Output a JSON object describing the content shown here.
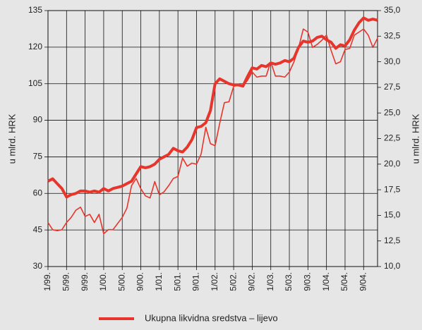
{
  "chart_data": {
    "type": "line",
    "y_label": "u mlrd. HRK",
    "y2_label": "u mlrd. HRK",
    "categories": [
      "1/99.",
      null,
      null,
      null,
      "5/99.",
      null,
      null,
      null,
      "9/99.",
      null,
      null,
      null,
      "1/00.",
      null,
      null,
      null,
      "5/00.",
      null,
      null,
      null,
      "9/00.",
      null,
      null,
      null,
      "1/01.",
      null,
      null,
      null,
      "5/01.",
      null,
      null,
      null,
      "9/01.",
      null,
      null,
      null,
      "1/02.",
      null,
      null,
      null,
      "5/02.",
      null,
      null,
      null,
      "9/02.",
      null,
      null,
      null,
      "1/03.",
      null,
      null,
      null,
      "5/03.",
      null,
      null,
      null,
      "9/03.",
      null,
      null,
      null,
      "1/04.",
      null,
      null,
      null,
      "5/04.",
      null,
      null,
      null,
      "9/04.",
      null,
      null,
      null
    ],
    "series": [
      {
        "name": "Ukupna likvidna sredstva – lijevo",
        "color": "#e8352b",
        "line_width": 4,
        "axis": "y",
        "values": [
          65,
          66,
          64,
          62,
          58.5,
          59.5,
          60,
          61,
          61,
          60.5,
          61,
          60.5,
          62,
          61,
          62,
          62.5,
          63,
          64,
          65,
          68,
          71,
          70.5,
          71,
          72,
          74,
          75,
          76,
          78.5,
          77.5,
          77,
          79,
          82,
          87,
          87.5,
          89,
          94,
          105,
          107,
          106,
          105,
          104.5,
          104.5,
          104,
          108,
          111.5,
          111,
          112.5,
          112,
          113.5,
          113,
          113.5,
          114.5,
          114,
          115.5,
          120,
          122.5,
          122,
          122.5,
          124,
          124.5,
          123,
          122,
          119.5,
          121,
          120.5,
          123,
          127,
          130,
          132,
          131,
          131.5,
          131
        ]
      },
      {
        "color": "#e8352b",
        "line_width": 1.6,
        "axis": "y2",
        "values": [
          14.3,
          13.6,
          13.5,
          13.6,
          14.3,
          14.8,
          15.5,
          15.8,
          14.9,
          15.1,
          14.3,
          15.1,
          13.2,
          13.6,
          13.6,
          14.2,
          14.8,
          15.7,
          17.9,
          18.6,
          17.6,
          16.9,
          16.7,
          18.3,
          17.0,
          17.3,
          17.9,
          18.6,
          18.8,
          20.6,
          19.8,
          20.1,
          20.0,
          21.0,
          23.6,
          22.0,
          21.8,
          24.0,
          26.0,
          26.1,
          27.6,
          27.7,
          27.6,
          28.2,
          29.0,
          28.5,
          28.6,
          28.6,
          30.0,
          28.6,
          28.6,
          28.5,
          29.0,
          30.0,
          31.4,
          33.2,
          32.9,
          31.4,
          31.7,
          32.1,
          32.6,
          31.1,
          29.8,
          30.0,
          31.2,
          31.3,
          32.6,
          32.9,
          33.2,
          32.6,
          31.4,
          32.3
        ]
      }
    ],
    "ylim": [
      30,
      135
    ],
    "yticks": [
      30,
      45,
      60,
      75,
      90,
      105,
      120,
      135
    ],
    "y2lim": [
      10,
      35
    ],
    "y2ticks": [
      {
        "value": 10,
        "label": "10,0"
      },
      {
        "value": 12.5,
        "label": "12,5"
      },
      {
        "value": 15,
        "label": "15,0"
      },
      {
        "value": 17.5,
        "label": "17,5"
      },
      {
        "value": 20,
        "label": "20,0"
      },
      {
        "value": 22.5,
        "label": "22,5"
      },
      {
        "value": 25,
        "label": "25,0"
      },
      {
        "value": 27.5,
        "label": "27,5"
      },
      {
        "value": 30,
        "label": "30,0"
      },
      {
        "value": 32.5,
        "label": "32,5"
      },
      {
        "value": 35,
        "label": "35,0"
      }
    ],
    "grid": true,
    "legend": "bottom"
  }
}
